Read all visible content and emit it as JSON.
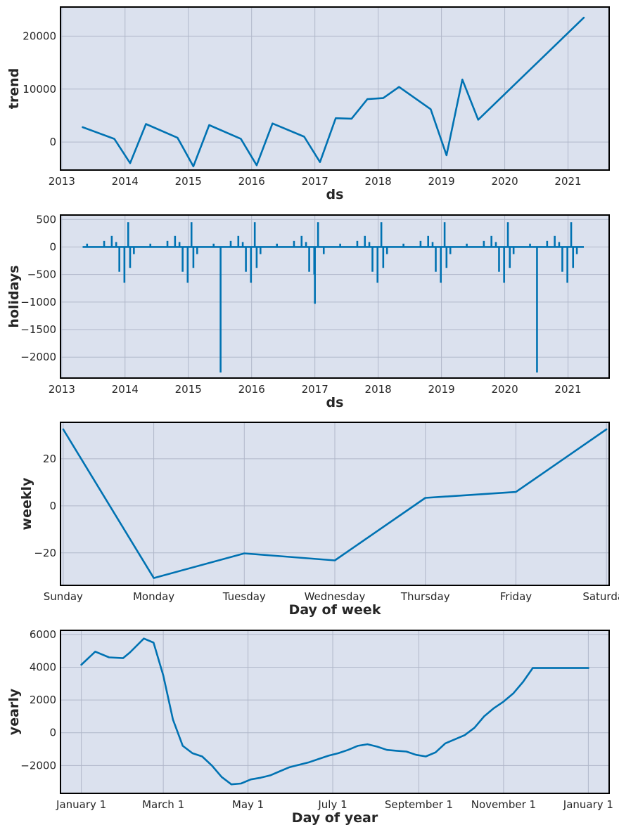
{
  "colors": {
    "series": "#0072b2",
    "background": "#dbe1ee",
    "grid": "#b0b7c9"
  },
  "chart_data": [
    {
      "id": "trend",
      "type": "line",
      "xlabel": "ds",
      "ylabel": "trend",
      "grid": true,
      "xlim": [
        2012.98,
        2021.65
      ],
      "ylim": [
        -5300,
        25500
      ],
      "x_ticks": [
        2013,
        2014,
        2015,
        2016,
        2017,
        2018,
        2019,
        2020,
        2021
      ],
      "x_tick_labels": [
        "2013",
        "2014",
        "2015",
        "2016",
        "2017",
        "2018",
        "2019",
        "2020",
        "2021"
      ],
      "y_ticks": [
        0,
        10000,
        20000
      ],
      "y_tick_labels": [
        "0",
        "10000",
        "20000"
      ],
      "series": [
        {
          "x": [
            2013.33,
            2013.83,
            2014.08,
            2014.33,
            2014.83,
            2015.08,
            2015.33,
            2015.83,
            2016.08,
            2016.33,
            2016.83,
            2017.08,
            2017.33,
            2017.58,
            2017.83,
            2018.08,
            2018.33,
            2018.83,
            2019.08,
            2019.33,
            2019.58,
            2021.25
          ],
          "y": [
            2800,
            600,
            -4000,
            3400,
            800,
            -4600,
            3200,
            600,
            -4400,
            3500,
            1000,
            -3800,
            4500,
            4400,
            8100,
            8300,
            10400,
            6200,
            -2500,
            11800,
            4200,
            23500
          ]
        }
      ]
    },
    {
      "id": "holidays",
      "type": "line",
      "xlabel": "ds",
      "ylabel": "holidays",
      "grid": true,
      "xlim": [
        2012.98,
        2021.65
      ],
      "ylim": [
        -2380,
        580
      ],
      "x_ticks": [
        2013,
        2014,
        2015,
        2016,
        2017,
        2018,
        2019,
        2020,
        2021
      ],
      "x_tick_labels": [
        "2013",
        "2014",
        "2015",
        "2016",
        "2017",
        "2018",
        "2019",
        "2020",
        "2021"
      ],
      "y_ticks": [
        -2000,
        -1500,
        -1000,
        -500,
        0,
        500
      ],
      "y_tick_labels": [
        "−2000",
        "−1500",
        "−1000",
        "−500",
        "0",
        "500"
      ],
      "baseline": {
        "x": [
          2013.33,
          2021.25
        ],
        "y": 0
      },
      "spikes": {
        "x": [
          2013.4,
          2013.67,
          2013.79,
          2013.86,
          2013.91,
          2013.99,
          2014.05,
          2014.08,
          2014.14,
          2014.4,
          2014.67,
          2014.79,
          2014.86,
          2014.91,
          2014.99,
          2015.05,
          2015.08,
          2015.14,
          2015.4,
          2015.51,
          2015.67,
          2015.79,
          2015.86,
          2015.91,
          2015.99,
          2016.05,
          2016.08,
          2016.14,
          2016.4,
          2016.67,
          2016.79,
          2016.86,
          2016.91,
          2016.99,
          2017.0,
          2017.05,
          2017.14,
          2017.4,
          2017.67,
          2017.79,
          2017.86,
          2017.91,
          2017.99,
          2018.05,
          2018.08,
          2018.14,
          2018.4,
          2018.67,
          2018.79,
          2018.86,
          2018.91,
          2018.99,
          2019.05,
          2019.08,
          2019.14,
          2019.4,
          2019.67,
          2019.79,
          2019.86,
          2019.91,
          2019.99,
          2020.05,
          2020.08,
          2020.14,
          2020.4,
          2020.51,
          2020.67,
          2020.79,
          2020.86,
          2020.91,
          2020.99,
          2021.05,
          2021.08,
          2021.14
        ],
        "y": [
          60,
          110,
          200,
          90,
          -450,
          -650,
          450,
          -380,
          -130,
          60,
          110,
          200,
          90,
          -450,
          -650,
          450,
          -380,
          -130,
          60,
          -2280,
          110,
          200,
          90,
          -450,
          -650,
          450,
          -380,
          -130,
          60,
          110,
          200,
          90,
          -450,
          -500,
          -1030,
          450,
          -130,
          60,
          110,
          200,
          90,
          -450,
          -650,
          450,
          -380,
          -130,
          60,
          110,
          200,
          90,
          -450,
          -650,
          450,
          -380,
          -130,
          60,
          110,
          200,
          90,
          -450,
          -650,
          450,
          -380,
          -130,
          60,
          -2280,
          110,
          200,
          90,
          -450,
          -650,
          450,
          -380,
          -130
        ]
      }
    },
    {
      "id": "weekly",
      "type": "line",
      "xlabel": "Day of week",
      "ylabel": "weekly",
      "grid": true,
      "categories": [
        "Sunday",
        "Monday",
        "Tuesday",
        "Wednesday",
        "Thursday",
        "Friday",
        "Saturday"
      ],
      "ylim": [
        -33.8,
        35.5
      ],
      "y_ticks": [
        -20,
        0,
        20
      ],
      "y_tick_labels": [
        "−20",
        "0",
        "20"
      ],
      "series": [
        {
          "values": [
            32.5,
            -30.7,
            -20.2,
            -23.2,
            3.4,
            5.9,
            32.5
          ]
        }
      ]
    },
    {
      "id": "yearly",
      "type": "line",
      "xlabel": "Day of year",
      "ylabel": "yearly",
      "grid": true,
      "xlim": [
        -15,
        380
      ],
      "ylim": [
        -3700,
        6250
      ],
      "x_ticks": [
        0,
        59,
        120,
        181,
        243,
        304,
        365
      ],
      "x_tick_labels": [
        "January 1",
        "March 1",
        "May 1",
        "July 1",
        "September 1",
        "November 1",
        "January 1"
      ],
      "y_ticks": [
        -2000,
        0,
        2000,
        4000,
        6000
      ],
      "y_tick_labels": [
        "−2000",
        "0",
        "2000",
        "4000",
        "6000"
      ],
      "series": [
        {
          "x": [
            0,
            10,
            20,
            30,
            35,
            45,
            52,
            59,
            66,
            73,
            80,
            87,
            94,
            101,
            108,
            115,
            122,
            129,
            136,
            143,
            150,
            157,
            164,
            171,
            178,
            185,
            192,
            199,
            206,
            213,
            220,
            227,
            234,
            241,
            248,
            255,
            262,
            269,
            276,
            283,
            290,
            297,
            304,
            311,
            318,
            325,
            332,
            339,
            346,
            353,
            360,
            365
          ],
          "y": [
            4150,
            4950,
            4600,
            4550,
            4900,
            5750,
            5500,
            3500,
            800,
            -800,
            -1250,
            -1450,
            -2000,
            -2700,
            -3150,
            -3100,
            -2850,
            -2750,
            -2600,
            -2350,
            -2100,
            -1950,
            -1800,
            -1600,
            -1400,
            -1250,
            -1050,
            -800,
            -700,
            -850,
            -1050,
            -1100,
            -1150,
            -1350,
            -1450,
            -1200,
            -650,
            -400,
            -150,
            300,
            1000,
            1500,
            1900,
            2400,
            3100,
            3950,
            3950,
            3950,
            3950,
            3950,
            3950,
            3950
          ]
        }
      ]
    }
  ]
}
